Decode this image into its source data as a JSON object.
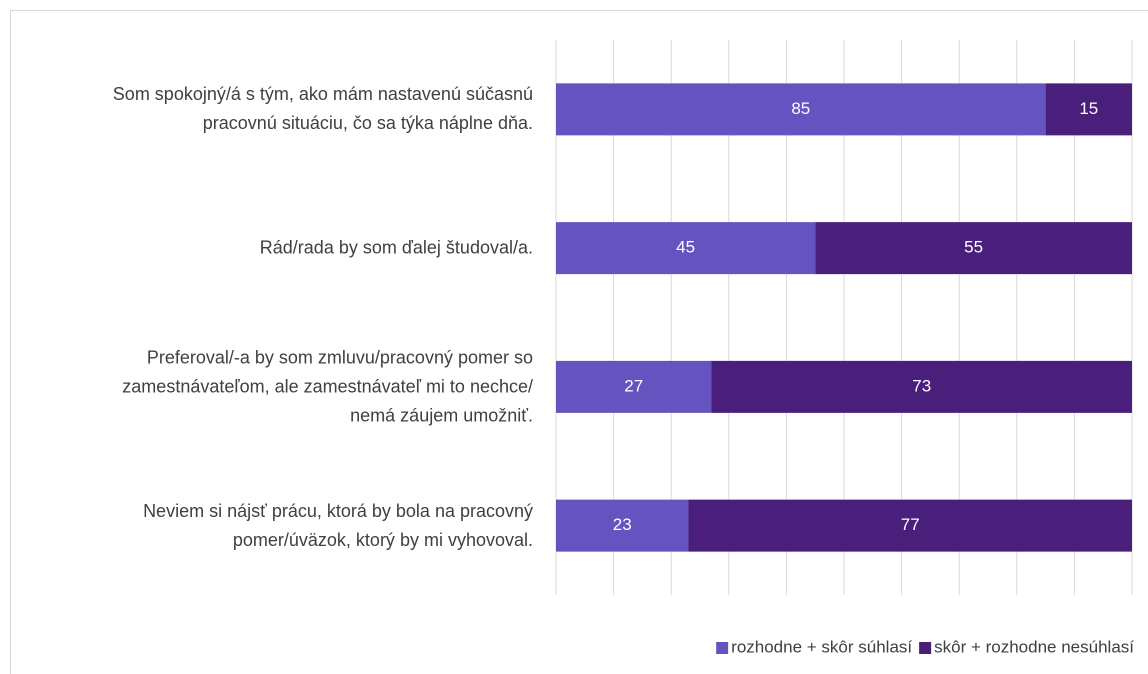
{
  "chart_data": {
    "type": "stacked_barh",
    "categories": [
      "Som spokojný/á s tým, ako mám nastavenú súčasnú\npracovnú situáciu, čo sa týka náplne dňa.",
      "Rád/rada by som ďalej študoval/a.",
      "Preferoval/-a by som zmluvu/pracovný pomer so\nzamestnávateľom, ale zamestnávateľ mi to nechce/\nnemá záujem umožniť.",
      "Neviem si nájsť prácu, ktorá by bola na pracovný\npomer/úväzok, ktorý by mi vyhovoval."
    ],
    "series": [
      {
        "name": "rozhodne + skôr súhlasí",
        "color": "#6553bf",
        "values": [
          85,
          45,
          27,
          23
        ]
      },
      {
        "name": "skôr + rozhodne nesúhlasí",
        "color": "#4a1f7c",
        "values": [
          15,
          55,
          73,
          77
        ]
      }
    ],
    "xlim": [
      0,
      100
    ],
    "xticks": [
      0,
      10,
      20,
      30,
      40,
      50,
      60,
      70,
      80,
      90,
      100
    ],
    "grid": true,
    "legend": "bottom-right"
  }
}
